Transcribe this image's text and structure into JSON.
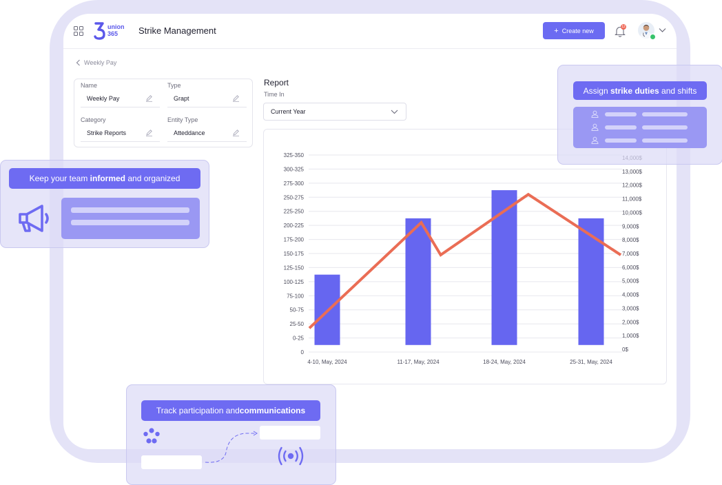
{
  "header": {
    "app_title": "Strike Management",
    "logo_text_top": "union",
    "logo_text_bottom": "365",
    "create_label": "Create new",
    "notification_count": "12"
  },
  "breadcrumb": {
    "back_label": "Weekly Pay"
  },
  "form": {
    "fields": [
      {
        "label": "Name",
        "value": "Weekly Pay"
      },
      {
        "label": "Type",
        "value": "Grapt"
      },
      {
        "label": "Category",
        "value": "Strike Reports"
      },
      {
        "label": "Entity Type",
        "value": "Atteddance"
      }
    ]
  },
  "report": {
    "title": "Report",
    "time_label": "Time In",
    "time_value": "Current Year"
  },
  "chart_data": {
    "type": "bar",
    "categories": [
      "4-10, May, 2024",
      "11-17, May, 2024",
      "18-24, May, 2024",
      "25-31, May, 2024"
    ],
    "series": [
      {
        "values": [
          137.5,
          237.5,
          287.5,
          237.5
        ],
        "color": "#6666f0"
      },
      {
        "type": "line",
        "color": "#ea6d55",
        "x": [
          0.0,
          1.15,
          1.35,
          2.25,
          3.2
        ],
        "values": [
          1700,
          9200,
          6900,
          11200,
          6900
        ]
      }
    ],
    "y_left_ticks": [
      "0",
      "0-25",
      "25-50",
      "50-75",
      "75-100",
      "100-125",
      "125-150",
      "150-175",
      "175-200",
      "200-225",
      "225-250",
      "250-275",
      "275-300",
      "300-325",
      "325-350"
    ],
    "y_right_ticks": [
      "0$",
      "1,000$",
      "2,000$",
      "3,000$",
      "4,000$",
      "5,000$",
      "6,000$",
      "7,000$",
      "8,000$",
      "9,000$",
      "10,000$",
      "11,000$",
      "12,000$",
      "13,000$",
      "14,000$"
    ],
    "ylim_left": [
      0,
      350
    ],
    "ylim_right": [
      0,
      14000
    ],
    "grid": true
  },
  "overlays": {
    "informed": {
      "text_before": "Keep your team ",
      "text_bold": "informed",
      "text_after": " and organized"
    },
    "duties": {
      "text_before": "Assign ",
      "text_bold": "strike duties",
      "text_after": " and shifts"
    },
    "track": {
      "text_before": "Track participation and ",
      "text_bold": "communications",
      "text_after": ""
    }
  },
  "colors": {
    "accent": "#6b6bf2",
    "line": "#ea6d55",
    "bar": "#6666f0",
    "frame": "#e4e3f7"
  }
}
